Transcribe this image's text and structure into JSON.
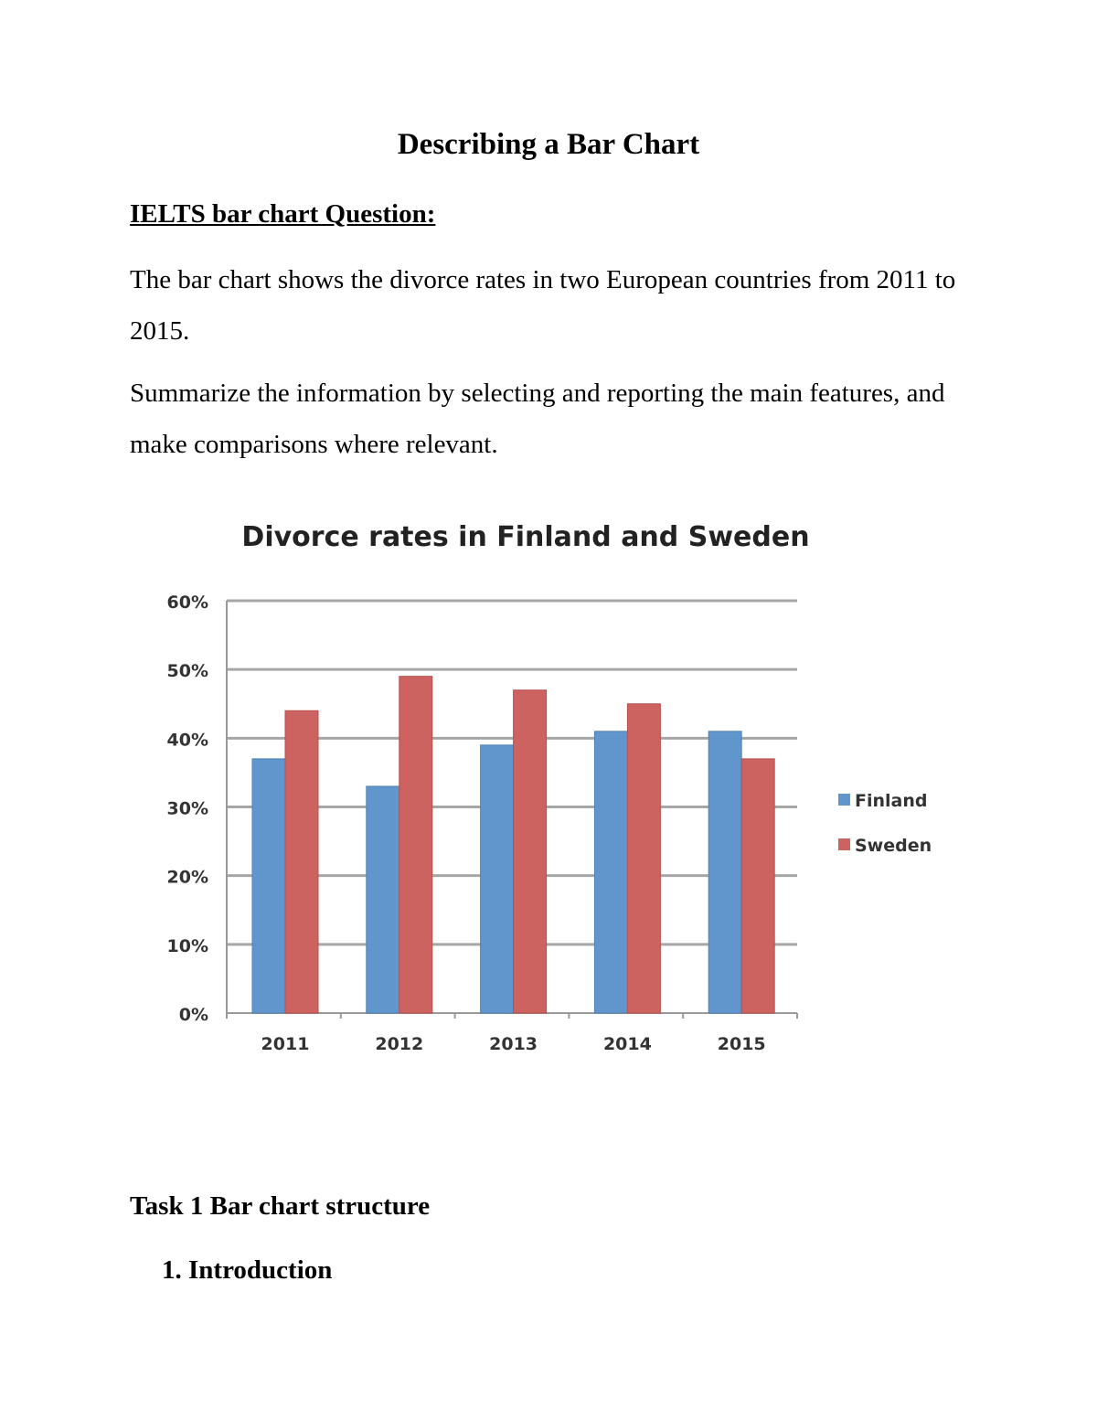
{
  "document": {
    "title": "Describing a Bar Chart",
    "question_heading": "IELTS bar chart Question:",
    "paragraph1": "The bar chart shows the divorce rates in two European countries from 2011 to 2015.",
    "paragraph2": "Summarize the information by selecting and reporting the main features, and make comparisons where relevant.",
    "section_heading": "Task 1 Bar chart structure",
    "list_item_1": "1.  Introduction"
  },
  "chart_data": {
    "type": "bar",
    "title": "Divorce rates in Finland and Sweden",
    "categories": [
      "2011",
      "2012",
      "2013",
      "2014",
      "2015"
    ],
    "series": [
      {
        "name": "Finland",
        "color": "#6096cb",
        "values": [
          37,
          33,
          39,
          41,
          41
        ]
      },
      {
        "name": "Sweden",
        "color": "#cc6360",
        "values": [
          44,
          49,
          47,
          45,
          37
        ]
      }
    ],
    "ylim": [
      0,
      60
    ],
    "yticks": [
      "0%",
      "10%",
      "20%",
      "30%",
      "40%",
      "50%",
      "60%"
    ],
    "unit": "%",
    "grid": true,
    "legend": "right"
  }
}
